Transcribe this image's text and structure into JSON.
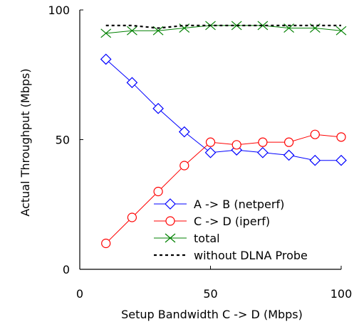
{
  "chart_data": {
    "type": "line",
    "xlabel": "Setup Bandwidth C -> D (Mbps)",
    "ylabel": "Actual Throughput (Mbps)",
    "xlim": [
      0,
      100
    ],
    "ylim": [
      0,
      100
    ],
    "xticks": [
      0,
      50,
      100
    ],
    "yticks": [
      0,
      50,
      100
    ],
    "grid": false,
    "legend_position": "bottom-right",
    "x": [
      10,
      20,
      30,
      40,
      50,
      60,
      70,
      80,
      90,
      100
    ],
    "series": [
      {
        "name": "A -> B (netperf)",
        "color": "#0000ff",
        "marker": "diamond",
        "line": "solid",
        "values": [
          81,
          72,
          62,
          53,
          45,
          46,
          45,
          44,
          42,
          42
        ]
      },
      {
        "name": "C -> D (iperf)",
        "color": "#ff0000",
        "marker": "circle",
        "line": "solid",
        "values": [
          10,
          20,
          30,
          40,
          49,
          48,
          49,
          49,
          52,
          51
        ]
      },
      {
        "name": "total",
        "color": "#008000",
        "marker": "x",
        "line": "solid",
        "values": [
          91,
          92,
          92,
          93,
          94,
          94,
          94,
          93,
          93,
          92
        ]
      },
      {
        "name": "without DLNA Probe",
        "color": "#000000",
        "marker": "none",
        "line": "dotted",
        "values": [
          94,
          94,
          93,
          94,
          94,
          94,
          94,
          94,
          94,
          94
        ]
      }
    ]
  }
}
